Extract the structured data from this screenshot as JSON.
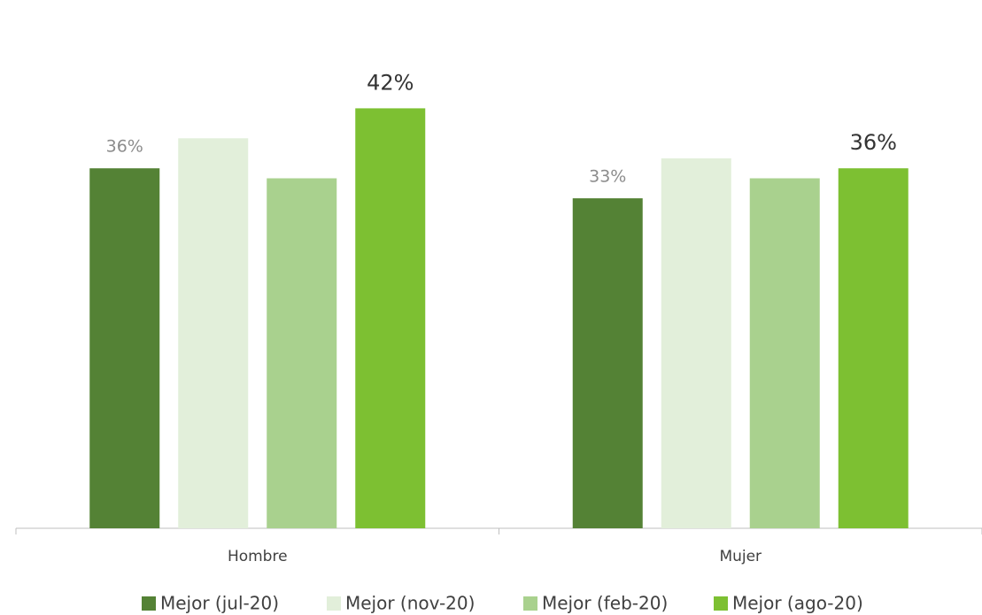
{
  "chart_data": {
    "type": "bar",
    "categories": [
      "Hombre",
      "Mujer"
    ],
    "series": [
      {
        "name": "Mejor (jul-20)",
        "color": "#548235",
        "values": [
          36,
          33
        ],
        "value_labels": [
          "36%",
          "33%"
        ]
      },
      {
        "name": "Mejor (nov-20)",
        "color": "#e2efda",
        "values": [
          39,
          37
        ],
        "value_labels": [
          null,
          null
        ]
      },
      {
        "name": "Mejor (feb-20)",
        "color": "#a9d18e",
        "values": [
          35,
          35
        ],
        "value_labels": [
          null,
          null
        ]
      },
      {
        "name": "Mejor (ago-20)",
        "color": "#7dc032",
        "values": [
          42,
          36
        ],
        "value_labels": [
          "42%",
          "36%"
        ]
      }
    ],
    "ylim": [
      0,
      50
    ],
    "legend": "bottom"
  }
}
